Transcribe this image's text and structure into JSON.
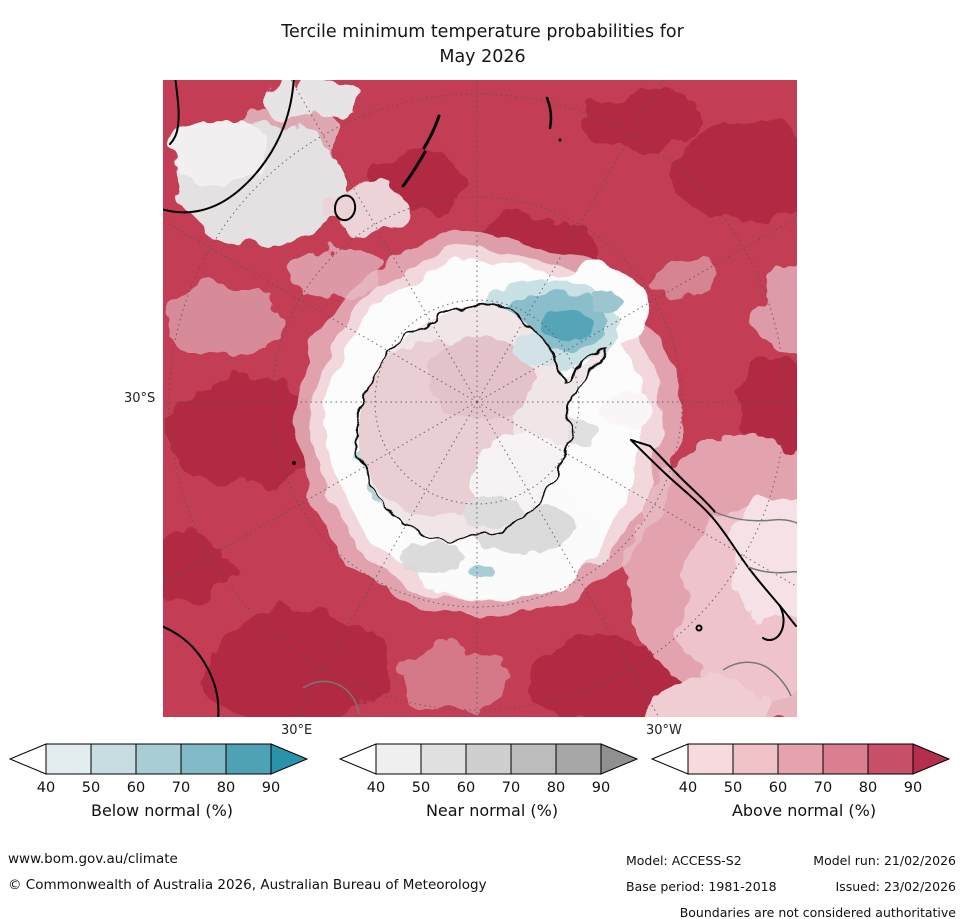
{
  "title": {
    "line1": "Tercile minimum temperature probabilities for",
    "line2": "May 2026"
  },
  "map": {
    "lat_label": "30°S",
    "lon_left_label": "30°E",
    "lon_right_label": "30°W"
  },
  "legends": [
    {
      "name": "below-normal",
      "label": "Below normal (%)",
      "ticks": [
        "40",
        "50",
        "60",
        "70",
        "80",
        "90"
      ],
      "cells": [
        "#ffffff",
        "#e3edef",
        "#c8dde2",
        "#a9cdd5",
        "#81b9c6",
        "#4fa2b5",
        "#2b93a9"
      ]
    },
    {
      "name": "near-normal",
      "label": "Near normal (%)",
      "ticks": [
        "40",
        "50",
        "60",
        "70",
        "80",
        "90"
      ],
      "cells": [
        "#ffffff",
        "#efefef",
        "#e0e0e0",
        "#cfcfcf",
        "#bcbcbc",
        "#a7a7a7",
        "#909090"
      ]
    },
    {
      "name": "above-normal",
      "label": "Above normal (%)",
      "ticks": [
        "40",
        "50",
        "60",
        "70",
        "80",
        "90"
      ],
      "cells": [
        "#ffffff",
        "#f6dadd",
        "#f0c3c9",
        "#e6a3ae",
        "#da7e90",
        "#c95069",
        "#b52e4e"
      ]
    }
  ],
  "footer": {
    "website": "www.bom.gov.au/climate",
    "copyright": "© Commonwealth of Australia 2026, Australian Bureau of Meteorology",
    "model_label": "Model: ACCESS-S2",
    "model_run": "Model run: 21/02/2026",
    "base_period": "Base period: 1981-2018",
    "issued": "Issued: 23/02/2026",
    "disclaimer": "Boundaries are not considered authoritative"
  }
}
